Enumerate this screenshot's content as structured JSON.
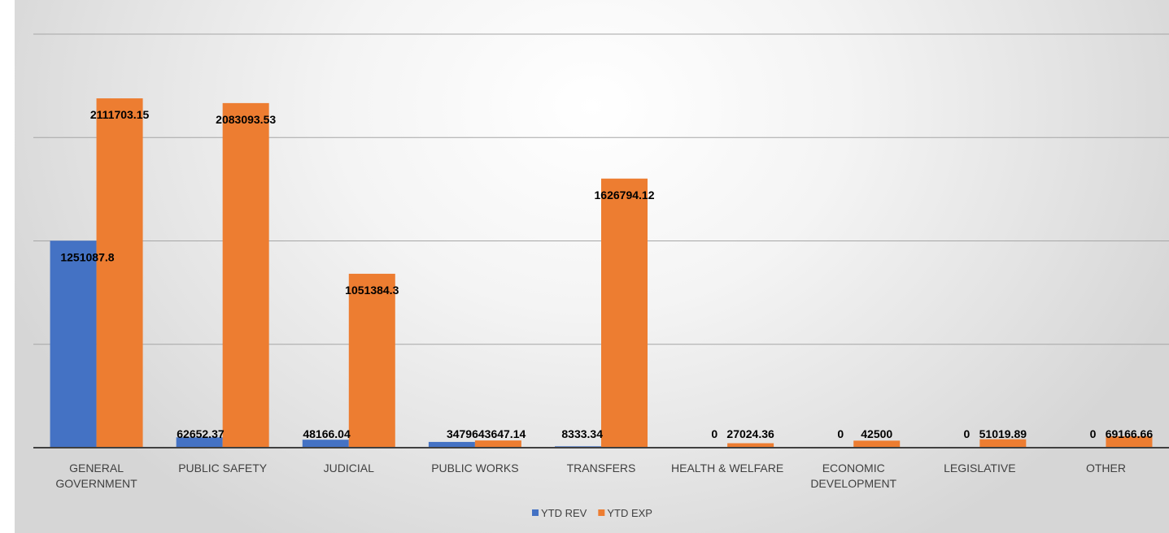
{
  "chart_data": {
    "type": "bar",
    "categories": [
      [
        "GENERAL",
        "GOVERNMENT"
      ],
      [
        "PUBLIC SAFETY"
      ],
      [
        "JUDICIAL"
      ],
      [
        "PUBLIC WORKS"
      ],
      [
        "TRANSFERS"
      ],
      [
        "HEALTH & WELFARE"
      ],
      [
        "ECONOMIC",
        "DEVELOPMENT"
      ],
      [
        "LEGISLATIVE"
      ],
      [
        "OTHER"
      ]
    ],
    "series": [
      {
        "name": "YTD REV",
        "color": "#4472C4",
        "values": [
          1251087.8,
          62652.37,
          48166.04,
          34796,
          8333.34,
          0,
          0,
          0,
          0
        ],
        "labels": [
          "1251087.8",
          "62652.37",
          "48166.04",
          "34796",
          "8333.34",
          "0",
          "0",
          "0",
          "0"
        ]
      },
      {
        "name": "YTD EXP",
        "color": "#ED7D31",
        "values": [
          2111703.15,
          2083093.53,
          1051384.3,
          43647.14,
          1626794.12,
          27024.36,
          42500,
          51019.89,
          69166.66
        ],
        "labels": [
          "2111703.15",
          "2083093.53",
          "1051384.3",
          "43647.14",
          "1626794.12",
          "27024.36",
          "42500",
          "51019.89",
          "69166.66"
        ]
      }
    ],
    "ylim": [
      0,
      2500000
    ],
    "grid": true,
    "legend": "bottom-center"
  }
}
